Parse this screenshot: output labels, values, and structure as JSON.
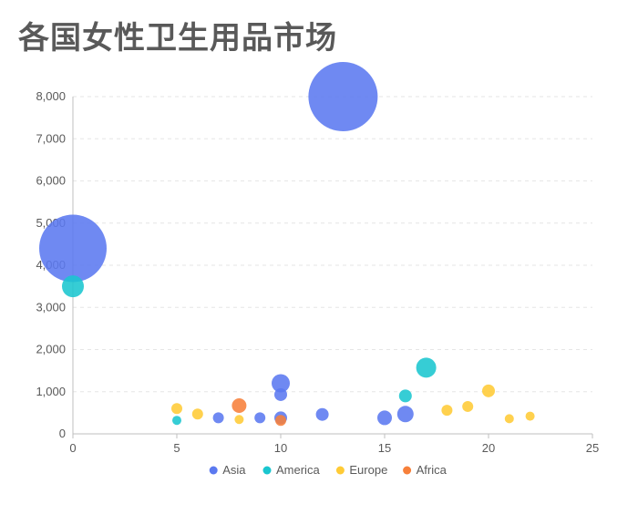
{
  "chart_data": {
    "type": "scatter",
    "title": "各国女性卫生用品市场",
    "xlim": [
      0,
      25
    ],
    "ylim": [
      0,
      8000
    ],
    "x_ticks": [
      0,
      5,
      10,
      15,
      20,
      25
    ],
    "y_ticks": [
      0,
      1000,
      2000,
      3000,
      4000,
      5000,
      6000,
      7000,
      8000
    ],
    "y_tick_labels": [
      "0",
      "1,000",
      "2,000",
      "3,000",
      "4,000",
      "5,000",
      "6,000",
      "7,000",
      "8,000"
    ],
    "grid": "horizontal dashed",
    "legend_position": "bottom",
    "bubble_size_encoded": true,
    "series": [
      {
        "name": "Asia",
        "color": "#5B79F0",
        "points": [
          {
            "x": 13,
            "y": 8000,
            "size": 38
          },
          {
            "x": 0,
            "y": 4400,
            "size": 37
          },
          {
            "x": 10,
            "y": 1200,
            "size": 10
          },
          {
            "x": 10,
            "y": 930,
            "size": 7
          },
          {
            "x": 16,
            "y": 470,
            "size": 9
          },
          {
            "x": 12,
            "y": 460,
            "size": 7
          },
          {
            "x": 7,
            "y": 380,
            "size": 6
          },
          {
            "x": 9,
            "y": 380,
            "size": 6
          },
          {
            "x": 10,
            "y": 380,
            "size": 7
          },
          {
            "x": 15,
            "y": 380,
            "size": 8
          }
        ]
      },
      {
        "name": "America",
        "color": "#1AC6CF",
        "points": [
          {
            "x": 0,
            "y": 3500,
            "size": 12
          },
          {
            "x": 17,
            "y": 1570,
            "size": 11
          },
          {
            "x": 16,
            "y": 900,
            "size": 7
          },
          {
            "x": 5,
            "y": 320,
            "size": 5
          }
        ]
      },
      {
        "name": "Europe",
        "color": "#FFCB36",
        "points": [
          {
            "x": 20,
            "y": 1020,
            "size": 7
          },
          {
            "x": 19,
            "y": 650,
            "size": 6
          },
          {
            "x": 5,
            "y": 600,
            "size": 6
          },
          {
            "x": 18,
            "y": 560,
            "size": 6
          },
          {
            "x": 6,
            "y": 470,
            "size": 6
          },
          {
            "x": 22,
            "y": 420,
            "size": 5
          },
          {
            "x": 21,
            "y": 360,
            "size": 5
          },
          {
            "x": 8,
            "y": 340,
            "size": 5
          }
        ]
      },
      {
        "name": "Africa",
        "color": "#F7803A",
        "points": [
          {
            "x": 8,
            "y": 670,
            "size": 8
          },
          {
            "x": 10,
            "y": 320,
            "size": 6
          }
        ]
      }
    ]
  }
}
